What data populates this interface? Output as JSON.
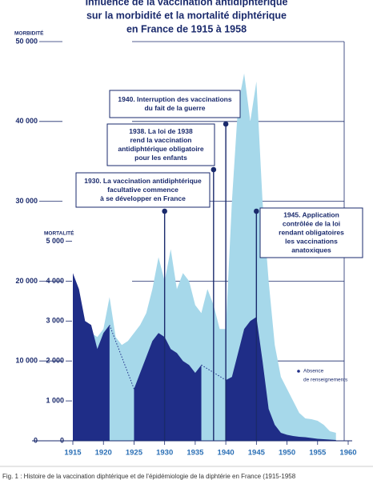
{
  "chart_data": {
    "type": "area",
    "title": [
      "Influence de la vaccination antidiphtérique",
      "sur la morbidité et la mortalité diphtérique",
      "en France de 1915 à 1958"
    ],
    "ylabel": "MORBIDITÉ",
    "y2label": "MORTALITÉ",
    "x": [
      1915,
      1916,
      1917,
      1918,
      1919,
      1920,
      1921,
      1922,
      1923,
      1924,
      1925,
      1926,
      1927,
      1928,
      1929,
      1930,
      1931,
      1932,
      1933,
      1934,
      1935,
      1936,
      1937,
      1938,
      1939,
      1940,
      1941,
      1942,
      1943,
      1944,
      1945,
      1946,
      1947,
      1948,
      1949,
      1950,
      1951,
      1952,
      1953,
      1954,
      1955,
      1956,
      1957,
      1958
    ],
    "series": [
      {
        "color": "#a6d8ea",
        "values": [
          18300,
          15000,
          14000,
          13500,
          13000,
          14000,
          18000,
          13000,
          12000,
          12500,
          13500,
          14500,
          16000,
          19000,
          23000,
          20000,
          24000,
          19000,
          21000,
          20000,
          17000,
          16000,
          19000,
          17000,
          14000,
          14000,
          30000,
          42000,
          46000,
          40000,
          45000,
          30000,
          20000,
          12000,
          8000,
          6500,
          5000,
          3500,
          2800,
          2700,
          2500,
          2000,
          1200,
          1000
        ]
      },
      {
        "color": "#1f2d87",
        "axis": "y2",
        "values": [
          4200,
          3800,
          3000,
          2900,
          2300,
          2700,
          2900,
          null,
          null,
          null,
          1300,
          1700,
          2100,
          2500,
          2700,
          2600,
          2300,
          2200,
          2000,
          1900,
          1700,
          1900,
          null,
          null,
          null,
          1520,
          1600,
          2200,
          2800,
          3000,
          3100,
          2000,
          800,
          400,
          200,
          150,
          120,
          100,
          90,
          70,
          50,
          40,
          30,
          20
        ]
      }
    ],
    "xlim": [
      1915,
      1960
    ],
    "xticks": [
      1915,
      1920,
      1925,
      1930,
      1935,
      1940,
      1945,
      1950,
      1955,
      1960
    ],
    "ylim": [
      0,
      50000
    ],
    "yticks": [
      0,
      {
        "value": 10000,
        "label": "10 000"
      },
      {
        "value": 20000,
        "label": "20 000"
      },
      {
        "value": 30000,
        "label": "30 000"
      },
      {
        "value": 40000,
        "label": "40 000"
      },
      {
        "value": 50000,
        "label": "50 000"
      }
    ],
    "y2lim": [
      0,
      10000
    ],
    "y2ticks": [
      0,
      {
        "value": 1000,
        "label": "1 000"
      },
      {
        "value": 2000,
        "label": "2 000"
      },
      {
        "value": 3000,
        "label": "3 000"
      },
      {
        "value": 4000,
        "label": "4 000"
      },
      {
        "value": 5000,
        "label": "5 000"
      }
    ],
    "grid": true,
    "missing_legend": [
      "Absence",
      "de renseignements"
    ],
    "annotations": [
      {
        "x": 1930,
        "lines": [
          "1930. La vaccination antidiphtérique",
          "facultative commence",
          "à se développer en France"
        ]
      },
      {
        "x": 1938,
        "lines": [
          "1938. La loi de 1938",
          "rend la vaccination",
          "antidiphtérique obligatoire",
          "pour les enfants"
        ]
      },
      {
        "x": 1940,
        "lines": [
          "1940. Interruption des vaccinations",
          "du fait de la guerre"
        ]
      },
      {
        "x": 1945,
        "lines": [
          "1945. Application",
          "contrôlée de la loi",
          "rendant obligatoires",
          "les vaccinations",
          "anatoxiques"
        ]
      }
    ],
    "caption": "Fig. 1 : Histoire de la vaccination diphtérique et de l'épidémiologie de la diphtérie en France (1915-1958"
  }
}
